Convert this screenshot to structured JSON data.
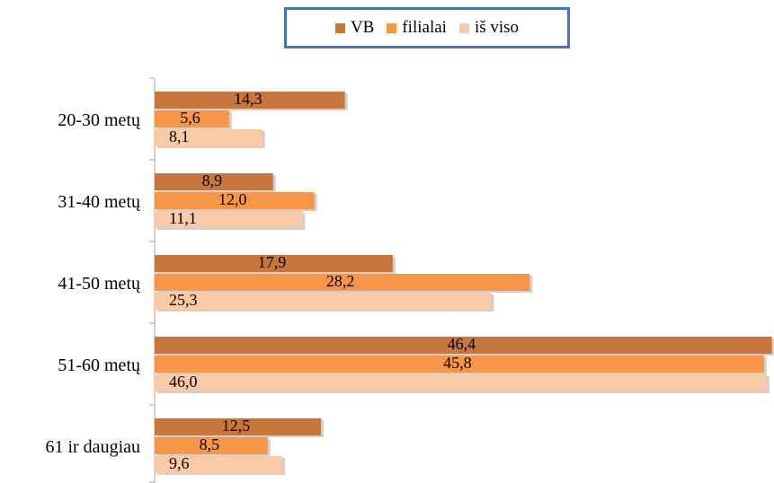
{
  "chart_data": {
    "type": "bar",
    "orientation": "horizontal",
    "categories": [
      "20-30 metų",
      "31-40 metų",
      "41-50 metų",
      "51-60 metų",
      "61 ir daugiau"
    ],
    "series": [
      {
        "name": "VB",
        "color": "#c8773c",
        "values": [
          14.3,
          8.9,
          17.9,
          46.4,
          12.5
        ],
        "labels": [
          "14,3",
          "8,9",
          "17,9",
          "46,4",
          "12,5"
        ]
      },
      {
        "name": "filialai",
        "color": "#f79646",
        "values": [
          5.6,
          12.0,
          28.2,
          45.8,
          8.5
        ],
        "labels": [
          "5,6",
          "12,0",
          "28,2",
          "45,8",
          "8,5"
        ]
      },
      {
        "name": "iš viso",
        "color": "#fac9a5",
        "values": [
          8.1,
          11.1,
          25.3,
          46.0,
          9.6
        ],
        "labels": [
          "8,1",
          "11,1",
          "25,3",
          "46,0",
          "9,6"
        ]
      }
    ],
    "legend_position": "top",
    "grid": false
  }
}
